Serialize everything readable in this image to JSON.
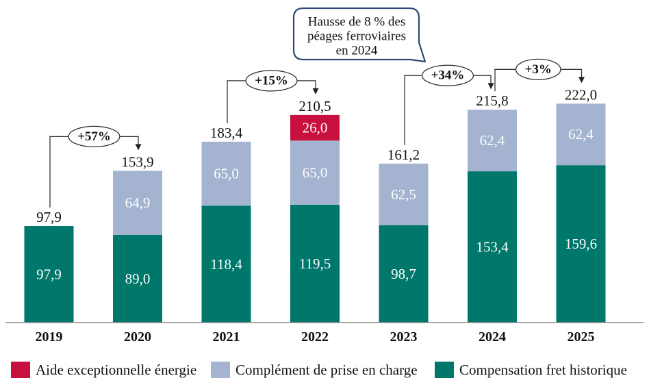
{
  "chart_data": {
    "type": "bar",
    "stacked": true,
    "categories": [
      "2019",
      "2020",
      "2021",
      "2022",
      "2023",
      "2024",
      "2025"
    ],
    "series": [
      {
        "name": "Compensation fret historique",
        "color": "#00776B",
        "values": [
          97.9,
          89.0,
          118.4,
          119.5,
          98.7,
          153.4,
          159.6
        ],
        "labels": [
          "97,9",
          "89,0",
          "118,4",
          "119,5",
          "98,7",
          "153,4",
          "159,6"
        ]
      },
      {
        "name": "Complément de prise en charge",
        "color": "#A3B3D0",
        "values": [
          0,
          64.9,
          65.0,
          65.0,
          62.5,
          62.4,
          62.4
        ],
        "labels": [
          null,
          "64,9",
          "65,0",
          "65,0",
          "62,5",
          "62,4",
          "62,4"
        ]
      },
      {
        "name": "Aide exceptionnelle énergie",
        "color": "#C8103E",
        "values": [
          0,
          0,
          0,
          26.0,
          0,
          0,
          0
        ],
        "labels": [
          null,
          null,
          null,
          "26,0",
          null,
          null,
          null
        ]
      }
    ],
    "totals": [
      97.9,
      153.9,
      183.4,
      210.5,
      161.2,
      215.8,
      222.0
    ],
    "total_labels": [
      "97,9",
      "153,9",
      "183,4",
      "210,5",
      "161,2",
      "215,8",
      "222,0"
    ],
    "annotations": [
      {
        "from": 0,
        "to": 1,
        "label": "+57%"
      },
      {
        "from": 2,
        "to": 3,
        "label": "+15%"
      },
      {
        "from": 4,
        "to": 5,
        "label": "+34%"
      },
      {
        "from": 5,
        "to": 6,
        "label": "+3%"
      }
    ],
    "callout": {
      "lines": [
        "Hausse de 8 % des",
        "péages ferroviaires",
        "en 2024"
      ],
      "border_color": "#2F4A78"
    },
    "legend": {
      "position": "bottom",
      "order": [
        2,
        1,
        0
      ]
    },
    "grid": false
  }
}
